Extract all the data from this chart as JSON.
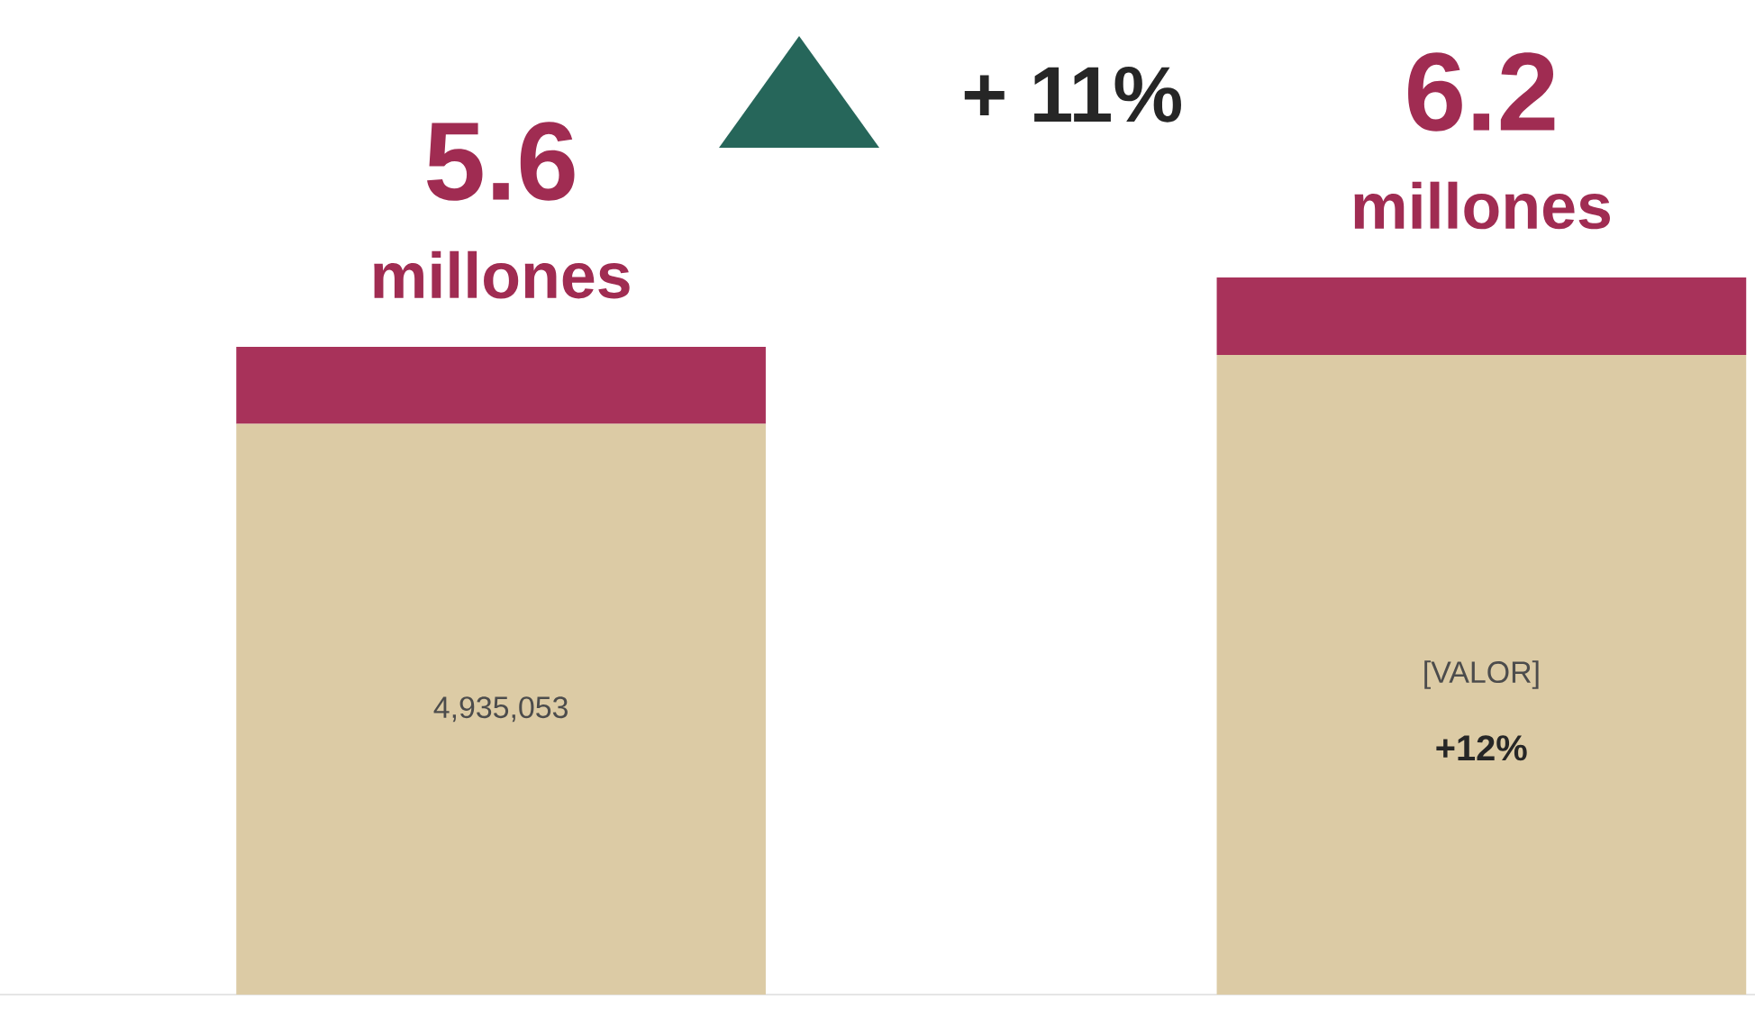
{
  "chart_data": {
    "type": "bar",
    "stacked": true,
    "categories": [
      null,
      null
    ],
    "series": [
      {
        "color": "#dccba5",
        "values": [
          4935053,
          5530000
        ],
        "value_labels": [
          "4,935,053",
          "[VALOR]"
        ]
      },
      {
        "color": "#a8325a",
        "values": [
          664947,
          670000
        ]
      }
    ],
    "annotations": [
      "5.6",
      "millones",
      "+ 11%",
      "6.2",
      "millones",
      "+12%"
    ]
  }
}
